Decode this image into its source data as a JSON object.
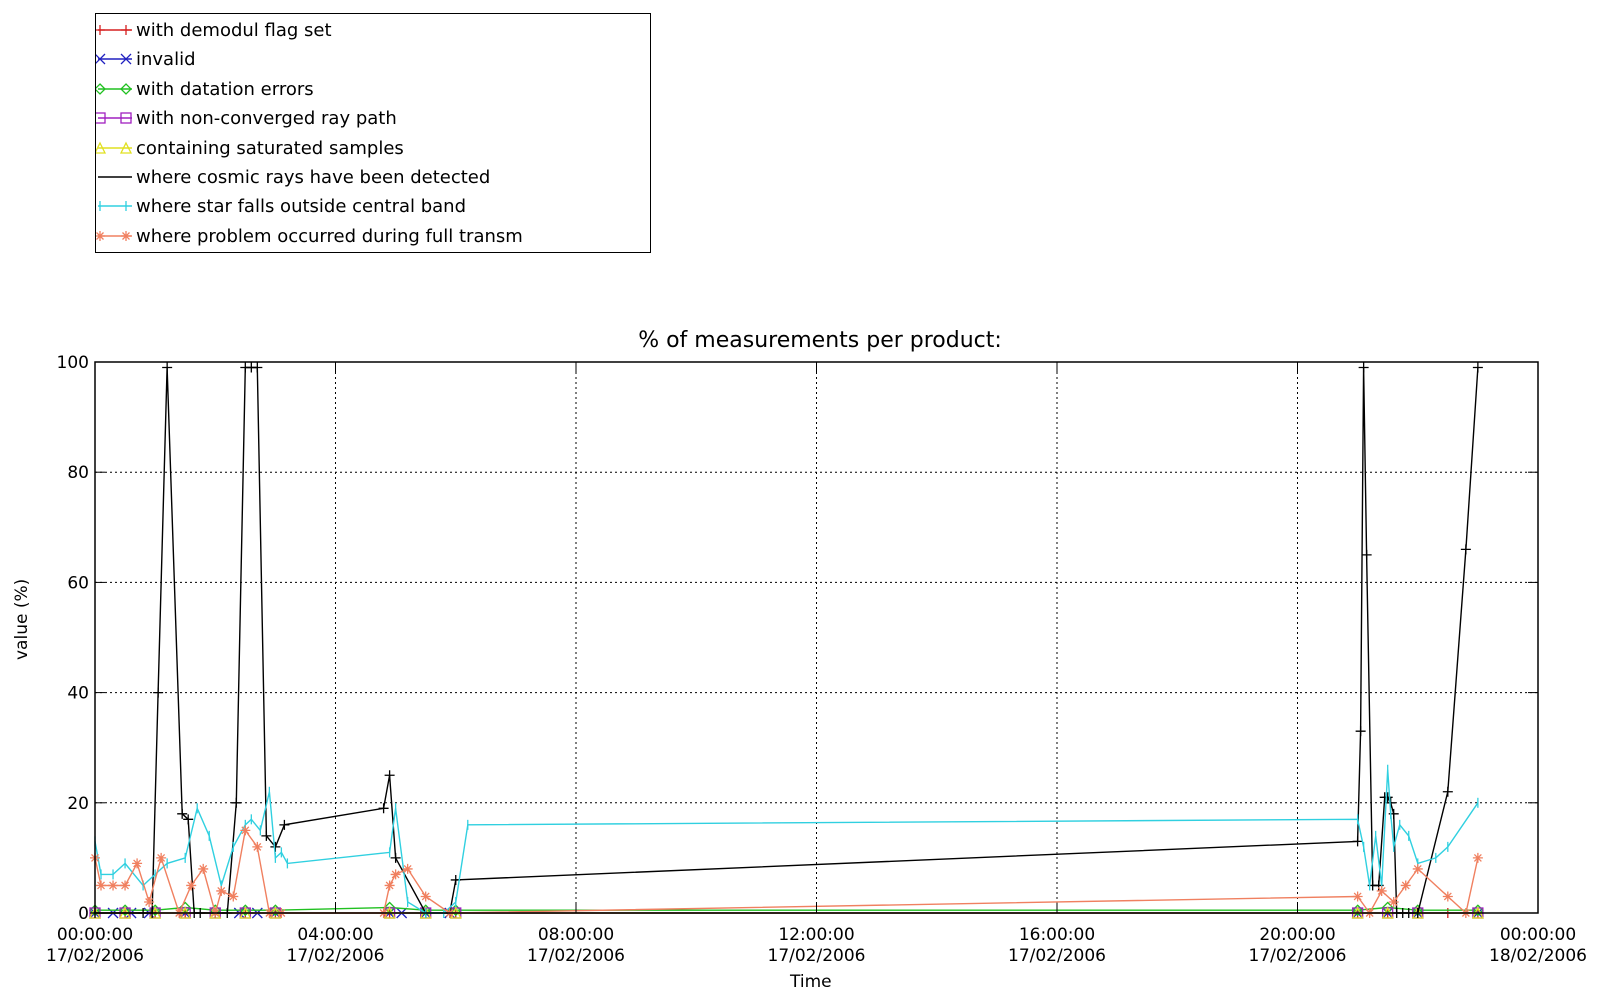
{
  "chart_data": {
    "type": "line",
    "title": "% of measurements per product:",
    "xlabel": "Time",
    "ylabel": "value (%)",
    "ylim": [
      0,
      100
    ],
    "yticks": [
      0,
      20,
      40,
      60,
      80,
      100
    ],
    "xlim": [
      "00:00:00 17/02/2006",
      "00:00:00 18/02/2006"
    ],
    "xticks": [
      {
        "hours": 0,
        "time": "00:00:00",
        "date": "17/02/2006"
      },
      {
        "hours": 4,
        "time": "04:00:00",
        "date": "17/02/2006"
      },
      {
        "hours": 8,
        "time": "08:00:00",
        "date": "17/02/2006"
      },
      {
        "hours": 12,
        "time": "12:00:00",
        "date": "17/02/2006"
      },
      {
        "hours": 16,
        "time": "16:00:00",
        "date": "17/02/2006"
      },
      {
        "hours": 20,
        "time": "20:00:00",
        "date": "17/02/2006"
      },
      {
        "hours": 24,
        "time": "00:00:00",
        "date": "18/02/2006"
      }
    ],
    "grid": true,
    "legend_position": "top-left, above plot",
    "series": [
      {
        "name": "with demodul flag set",
        "color": "#d62020",
        "marker": "plus",
        "x": [
          0.0,
          0.5,
          1.0,
          1.5,
          2.0,
          2.5,
          3.0,
          4.9,
          5.5,
          6.0,
          21.0,
          21.5,
          22.0,
          22.5,
          23.0
        ],
        "y": [
          0,
          0,
          0,
          0,
          0,
          0,
          0,
          0,
          0,
          0,
          0,
          0,
          0,
          0,
          0
        ]
      },
      {
        "name": "invalid",
        "color": "#2020c0",
        "marker": "x",
        "x": [
          0.0,
          0.3,
          0.6,
          0.9,
          1.5,
          2.4,
          2.7,
          3.0,
          4.9,
          5.1,
          5.5,
          5.9,
          21.0,
          21.5,
          22.0,
          23.0
        ],
        "y": [
          0,
          0,
          0,
          0,
          0,
          0,
          0,
          0,
          0,
          0,
          0,
          0,
          0,
          0,
          0,
          0
        ]
      },
      {
        "name": "with datation errors",
        "color": "#20c020",
        "marker": "diamond",
        "x": [
          0.0,
          0.5,
          1.0,
          1.5,
          2.0,
          2.5,
          3.0,
          4.9,
          5.5,
          6.0,
          21.0,
          21.5,
          22.0,
          23.0
        ],
        "y": [
          0.5,
          0.5,
          0.5,
          1,
          0.5,
          0.5,
          0.5,
          1,
          0.5,
          0.5,
          0.5,
          1,
          0.5,
          0.5
        ]
      },
      {
        "name": "with non-converged ray path",
        "color": "#a020c0",
        "marker": "square",
        "x": [
          0.0,
          0.5,
          1.0,
          1.5,
          2.0,
          2.5,
          3.0,
          4.9,
          5.5,
          6.0,
          21.0,
          21.5,
          22.0,
          23.0
        ],
        "y": [
          0,
          0,
          0,
          0,
          0,
          0,
          0,
          0,
          0,
          0,
          0,
          0,
          0,
          0
        ]
      },
      {
        "name": "containing saturated samples",
        "color": "#e0e020",
        "marker": "triangle",
        "x": [
          0.0,
          0.5,
          1.0,
          1.5,
          2.0,
          2.5,
          3.0,
          4.9,
          5.5,
          6.0,
          21.0,
          21.5,
          22.0,
          23.0
        ],
        "y": [
          0,
          0,
          0,
          0,
          0,
          0,
          0,
          0,
          0,
          0,
          0,
          0,
          0,
          0
        ]
      },
      {
        "name": "where cosmic rays have been detected",
        "color": "#000000",
        "marker": "plus",
        "x": [
          0.0,
          0.8,
          0.95,
          1.05,
          1.2,
          1.45,
          1.55,
          1.65,
          1.75,
          2.0,
          2.2,
          2.35,
          2.5,
          2.6,
          2.7,
          2.85,
          3.0,
          3.15,
          4.8,
          4.9,
          5.0,
          5.5,
          5.9,
          6.0,
          21.0,
          21.05,
          21.1,
          21.15,
          21.25,
          21.35,
          21.45,
          21.5,
          21.55,
          21.6,
          21.65,
          21.75,
          21.85,
          22.0,
          22.5,
          22.8,
          23.0
        ],
        "y": [
          0,
          0,
          0,
          40,
          99,
          18,
          17,
          0,
          0,
          0,
          0,
          20,
          99,
          99,
          99,
          14,
          12,
          16,
          19,
          25,
          10,
          0,
          0,
          6,
          13,
          33,
          99,
          65,
          5,
          5,
          21,
          21,
          20,
          18,
          0,
          0,
          0,
          0,
          22,
          66,
          99
        ]
      },
      {
        "name": "where star falls outside central band",
        "color": "#30d0e0",
        "marker": "tick",
        "x": [
          0.0,
          0.1,
          0.3,
          0.5,
          0.8,
          1.0,
          1.2,
          1.5,
          1.7,
          1.9,
          2.1,
          2.3,
          2.5,
          2.6,
          2.75,
          2.9,
          3.0,
          3.1,
          3.2,
          4.9,
          5.0,
          5.2,
          5.5,
          5.8,
          6.0,
          6.2,
          21.0,
          21.1,
          21.2,
          21.3,
          21.4,
          21.5,
          21.55,
          21.6,
          21.7,
          21.85,
          22.0,
          22.3,
          22.5,
          23.0
        ],
        "y": [
          13,
          7,
          7,
          9,
          5,
          7,
          9,
          10,
          19,
          14,
          5,
          12,
          16,
          17,
          15,
          22,
          10,
          11,
          9,
          11,
          19,
          2,
          0,
          0,
          2,
          16,
          17,
          12,
          5,
          14,
          5,
          26,
          18,
          12,
          16,
          14,
          9,
          10,
          12,
          20
        ]
      },
      {
        "name": "where problem occurred during full transm",
        "color": "#f08060",
        "marker": "asterisk",
        "x": [
          0.0,
          0.1,
          0.3,
          0.5,
          0.7,
          0.9,
          1.1,
          1.4,
          1.6,
          1.8,
          2.0,
          2.1,
          2.3,
          2.5,
          2.7,
          2.9,
          3.1,
          4.8,
          4.9,
          5.0,
          5.2,
          5.5,
          5.9,
          21.0,
          21.2,
          21.4,
          21.6,
          21.8,
          22.0,
          22.5,
          22.8,
          23.0
        ],
        "y": [
          10,
          5,
          5,
          5,
          9,
          2,
          10,
          0,
          5,
          8,
          0,
          4,
          3,
          15,
          12,
          0,
          0,
          0,
          5,
          7,
          8,
          3,
          0,
          3,
          0,
          4,
          2,
          5,
          8,
          3,
          0,
          10
        ]
      }
    ]
  }
}
